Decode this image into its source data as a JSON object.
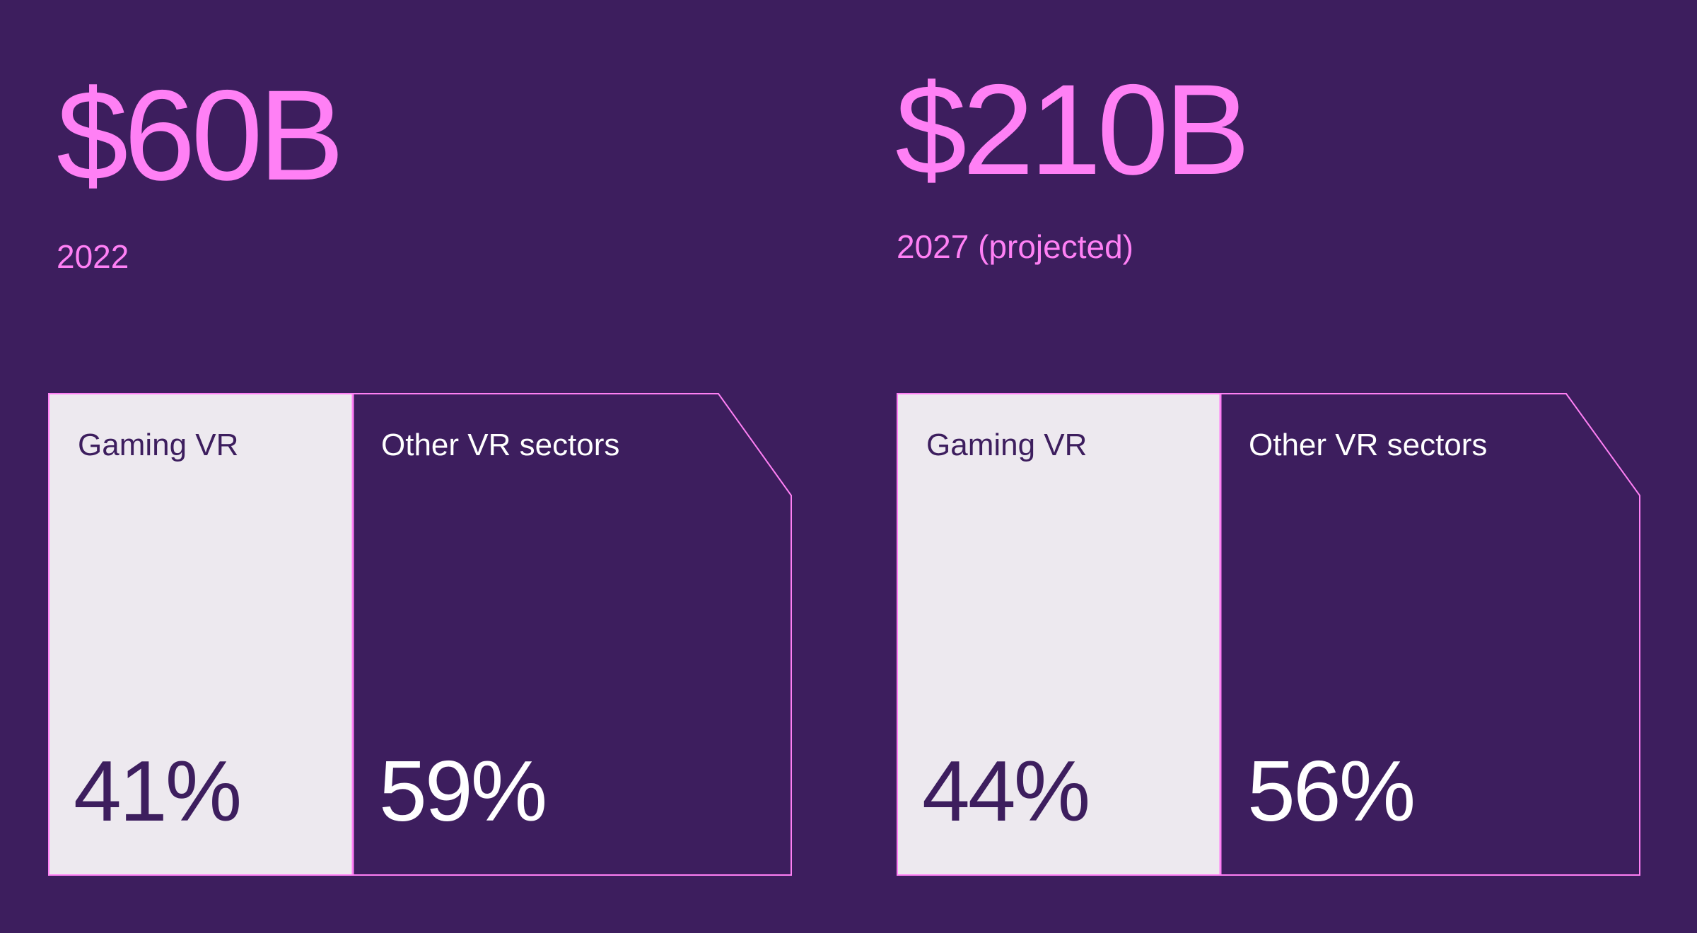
{
  "colors": {
    "background": "#3d1e5e",
    "accent": "#ff80f5",
    "light_panel": "#ede9ef",
    "text_light": "#ffffff"
  },
  "panels": [
    {
      "value": "$60B",
      "year": "2022",
      "segments": [
        {
          "label": "Gaming VR",
          "percent": "41%"
        },
        {
          "label": "Other VR sectors",
          "percent": "59%"
        }
      ]
    },
    {
      "value": "$210B",
      "year": "2027 (projected)",
      "segments": [
        {
          "label": "Gaming VR",
          "percent": "44%"
        },
        {
          "label": "Other VR sectors",
          "percent": "56%"
        }
      ]
    }
  ]
}
